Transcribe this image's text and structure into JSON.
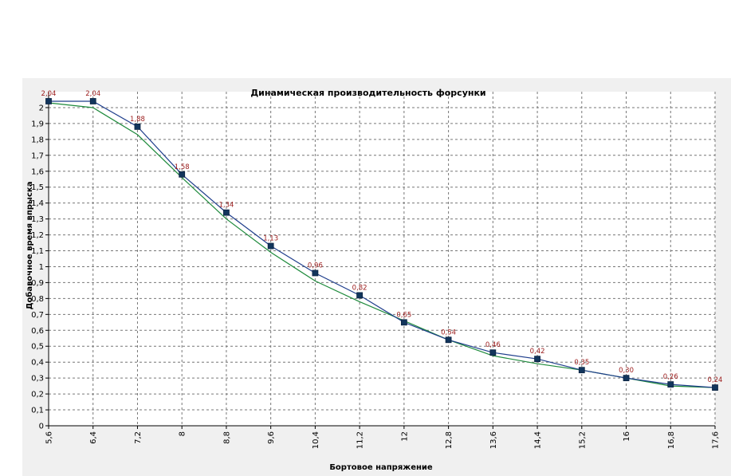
{
  "chart_data": {
    "type": "line",
    "title": "Динамическая производительность форсунки",
    "xlabel": "Бортовое напряжение",
    "ylabel": "Добавочное время впрыска",
    "x": [
      5.6,
      6.4,
      7.2,
      8,
      8.8,
      9.6,
      10.4,
      11.2,
      12,
      12.8,
      13.6,
      14.4,
      15.2,
      16,
      16.8,
      17.6
    ],
    "x_tick_labels": [
      "5,6",
      "6,4",
      "7,2",
      "8",
      "8,8",
      "9,6",
      "10,4",
      "11,2",
      "12",
      "12,8",
      "13,6",
      "14,4",
      "15,2",
      "16",
      "16,8",
      "17,6"
    ],
    "y_ticks": [
      0,
      0.1,
      0.2,
      0.3,
      0.4,
      0.5,
      0.6,
      0.7,
      0.8,
      0.9,
      1,
      1.1,
      1.2,
      1.3,
      1.4,
      1.5,
      1.6,
      1.7,
      1.8,
      1.9,
      2
    ],
    "y_tick_labels": [
      "0",
      "0,1",
      "0,2",
      "0,3",
      "0,4",
      "0,5",
      "0,6",
      "0,7",
      "0,8",
      "0,9",
      "1",
      "1,1",
      "1,2",
      "1,3",
      "1,4",
      "1,5",
      "1,6",
      "1,7",
      "1,8",
      "1,9",
      "2"
    ],
    "xlim": [
      5.6,
      17.6
    ],
    "ylim": [
      0,
      2.1
    ],
    "grid": true,
    "series": [
      {
        "color": "#1f3e8c",
        "marker": "square",
        "values": [
          2.04,
          2.04,
          1.88,
          1.58,
          1.34,
          1.13,
          0.96,
          0.82,
          0.65,
          0.54,
          0.46,
          0.42,
          0.35,
          0.3,
          0.26,
          0.24
        ],
        "data_labels": [
          "2,04",
          "2,04",
          "1,88",
          "1,58",
          "1,34",
          "1,13",
          "0,96",
          "0,82",
          "0,65",
          "0,54",
          "0,46",
          "0,42",
          "0,35",
          "0,30",
          "0,26",
          "0,24"
        ]
      },
      {
        "color": "#1e8a3c",
        "marker": "none",
        "values": [
          2.03,
          2.0,
          1.83,
          1.56,
          1.3,
          1.09,
          0.91,
          0.78,
          0.66,
          0.54,
          0.44,
          0.39,
          0.35,
          0.3,
          0.25,
          0.24
        ]
      }
    ],
    "colors": {
      "data_label": "#9b1b1b",
      "grid": "#777777",
      "panel_bg": "#f0f0f0"
    }
  }
}
